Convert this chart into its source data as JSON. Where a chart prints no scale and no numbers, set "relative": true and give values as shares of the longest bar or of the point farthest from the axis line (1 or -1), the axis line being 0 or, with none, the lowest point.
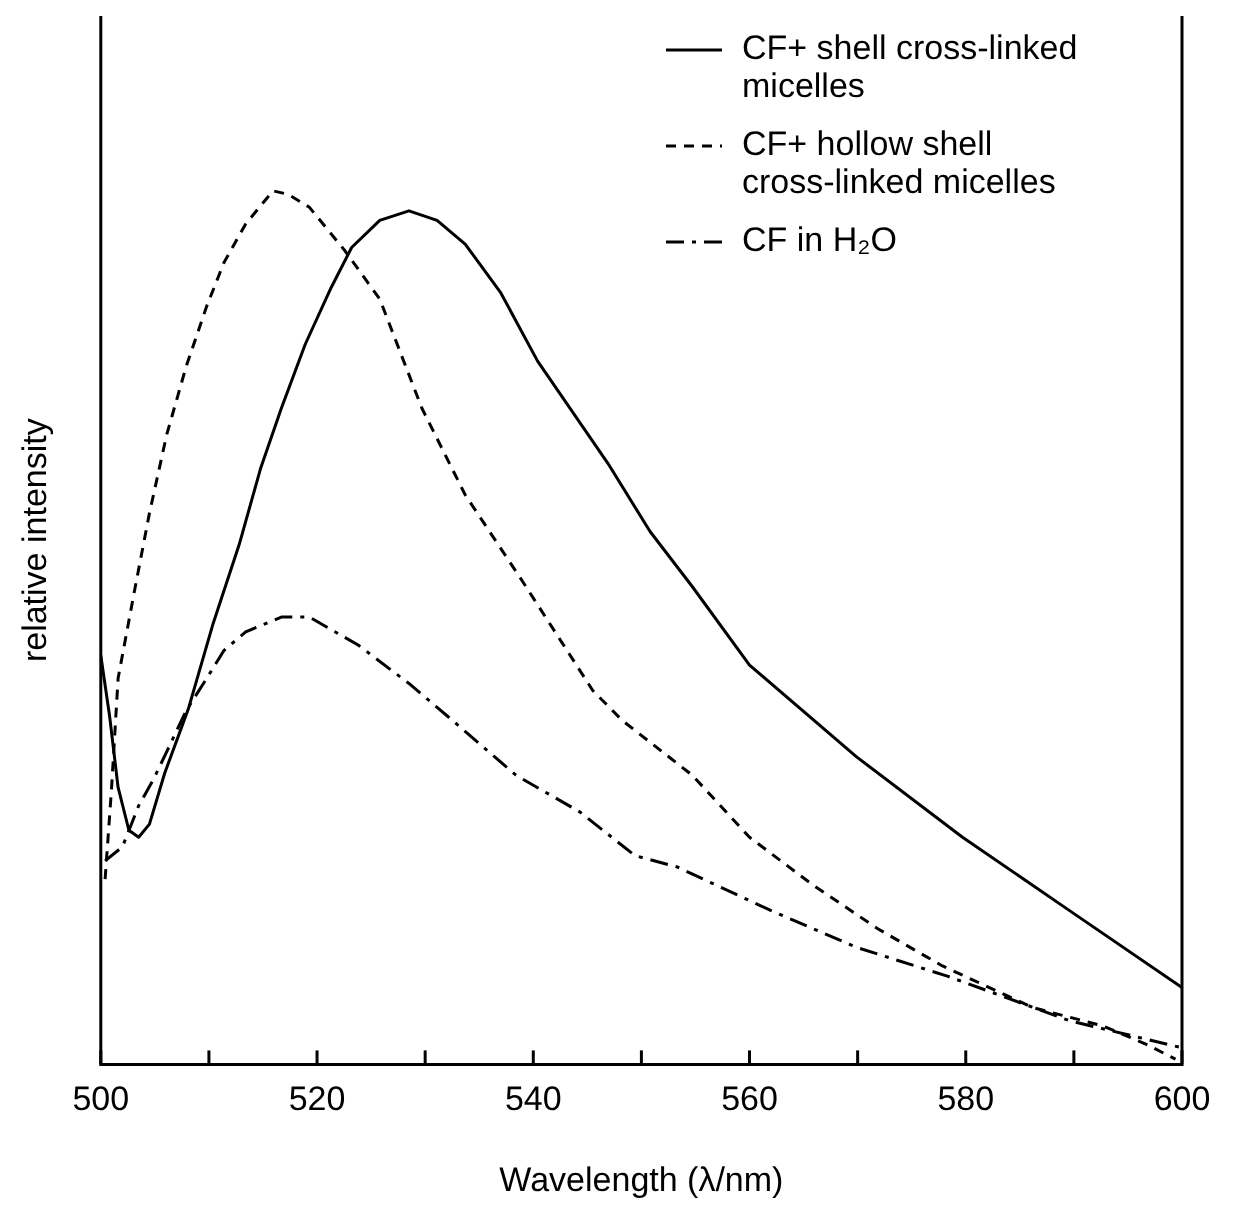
{
  "chart_data": {
    "type": "line",
    "relative": true,
    "xlabel": "Wavelength (λ/nm)",
    "ylabel": "relative intensity",
    "xlim": [
      500,
      600
    ],
    "xticks": [
      500,
      {
        "value": 510,
        "label": null
      },
      520,
      {
        "value": 530,
        "label": null
      },
      540,
      {
        "value": 550,
        "label": null
      },
      560,
      {
        "value": 570,
        "label": null
      },
      580,
      {
        "value": 590,
        "label": null
      },
      600
    ],
    "legend": "top right",
    "marker": "none",
    "grid": false,
    "series": [
      {
        "name": "CF+ shell cross-linked micelles",
        "color": "#000000",
        "line_style": "solid",
        "x": [
          500,
          500.8,
          501.6,
          502.6,
          503.5,
          504.5,
          505.9,
          508.1,
          510.4,
          512.8,
          514.8,
          516.7,
          518.9,
          521.3,
          523.2,
          525.8,
          528.5,
          531.1,
          533.7,
          537,
          540.4,
          546.9,
          550.8,
          554.7,
          560,
          569.9,
          579.7,
          589.6,
          600
        ],
        "values": [
          0.468,
          0.4,
          0.317,
          0.268,
          0.26,
          0.275,
          0.333,
          0.407,
          0.505,
          0.595,
          0.683,
          0.751,
          0.824,
          0.889,
          0.935,
          0.966,
          0.977,
          0.966,
          0.939,
          0.883,
          0.805,
          0.688,
          0.61,
          0.547,
          0.457,
          0.352,
          0.26,
          0.176,
          0.088
        ]
      },
      {
        "name": "CF+ hollow shell cross-linked micelles",
        "color": "#000000",
        "line_style": "dashed",
        "x": [
          500.4,
          501,
          501.6,
          503.1,
          504.5,
          506.1,
          507.9,
          509.8,
          511.4,
          513.4,
          515.4,
          515.9,
          517.3,
          519.3,
          522.6,
          525.8,
          529.7,
          533.7,
          539,
          545.5,
          548.2,
          554.7,
          560,
          565.9,
          571.9,
          577.8,
          586.2,
          592.7,
          596.7,
          599.4
        ],
        "values": [
          0.212,
          0.317,
          0.442,
          0.541,
          0.631,
          0.721,
          0.799,
          0.868,
          0.918,
          0.962,
          0.992,
          1,
          0.996,
          0.981,
          0.931,
          0.876,
          0.751,
          0.652,
          0.553,
          0.428,
          0.394,
          0.331,
          0.26,
          0.205,
          0.155,
          0.113,
          0.065,
          0.044,
          0.023,
          0.006
        ]
      },
      {
        "name": "CF in H₂O",
        "color": "#000000",
        "line_style": "dashdot",
        "x": [
          500.4,
          502,
          503.5,
          504.9,
          506.1,
          507.9,
          509.8,
          511.4,
          513.4,
          516.7,
          519.3,
          523.8,
          528.5,
          532.5,
          538.4,
          544.3,
          549.4,
          553.3,
          562,
          569.9,
          578.3,
          589.6,
          600
        ],
        "values": [
          0.233,
          0.249,
          0.296,
          0.327,
          0.358,
          0.405,
          0.442,
          0.474,
          0.495,
          0.512,
          0.512,
          0.48,
          0.436,
          0.394,
          0.331,
          0.289,
          0.239,
          0.226,
          0.176,
          0.134,
          0.101,
          0.05,
          0.019
        ]
      }
    ]
  }
}
